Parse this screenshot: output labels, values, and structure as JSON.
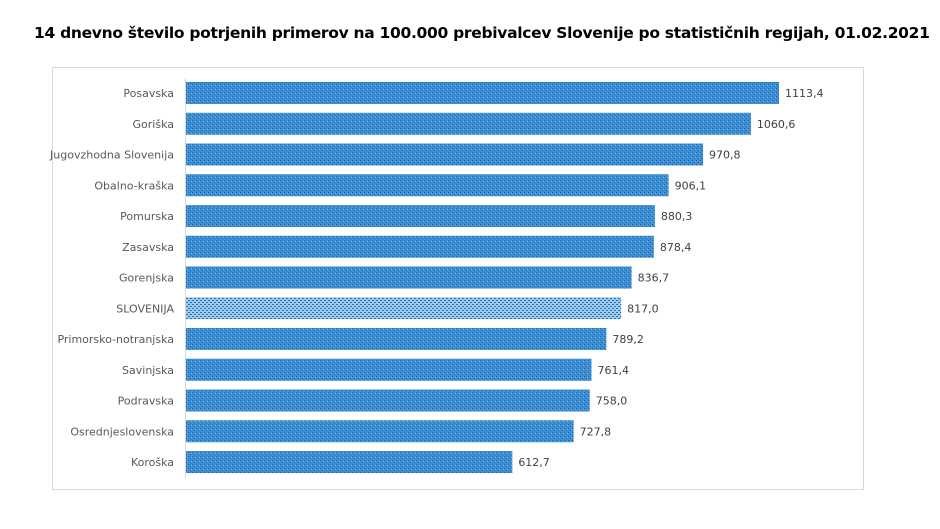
{
  "chart_data": {
    "type": "bar",
    "orientation": "horizontal",
    "title": "14 dnevno število potrjenih primerov na 100.000 prebivalcev Slovenije po statističnih regijah, 01.02.2021",
    "categories": [
      "Posavska",
      "Goriška",
      "Jugovzhodna Slovenija",
      "Obalno-kraška",
      "Pomurska",
      "Zasavska",
      "Gorenjska",
      "SLOVENIJA",
      "Primorsko-notranjska",
      "Savinjska",
      "Podravska",
      "Osrednjeslovenska",
      "Koroška"
    ],
    "values": [
      1113.4,
      1060.6,
      970.8,
      906.1,
      880.3,
      878.4,
      836.7,
      817.0,
      789.2,
      761.4,
      758.0,
      727.8,
      612.7
    ],
    "labels": [
      "1113,4",
      "1060,6",
      "970,8",
      "906,1",
      "880,3",
      "878,4",
      "836,7",
      "817,0",
      "789,2",
      "761,4",
      "758,0",
      "727,8",
      "612,7"
    ],
    "highlight": "SLOVENIJA",
    "xlim": [
      0,
      1113.4
    ],
    "grid": false,
    "colors": {
      "bar": "#3d8fd6",
      "bar_dots": "#1f5f9e",
      "highlight": "#8fc4ec",
      "highlight_dots": "#2a6fae"
    }
  }
}
